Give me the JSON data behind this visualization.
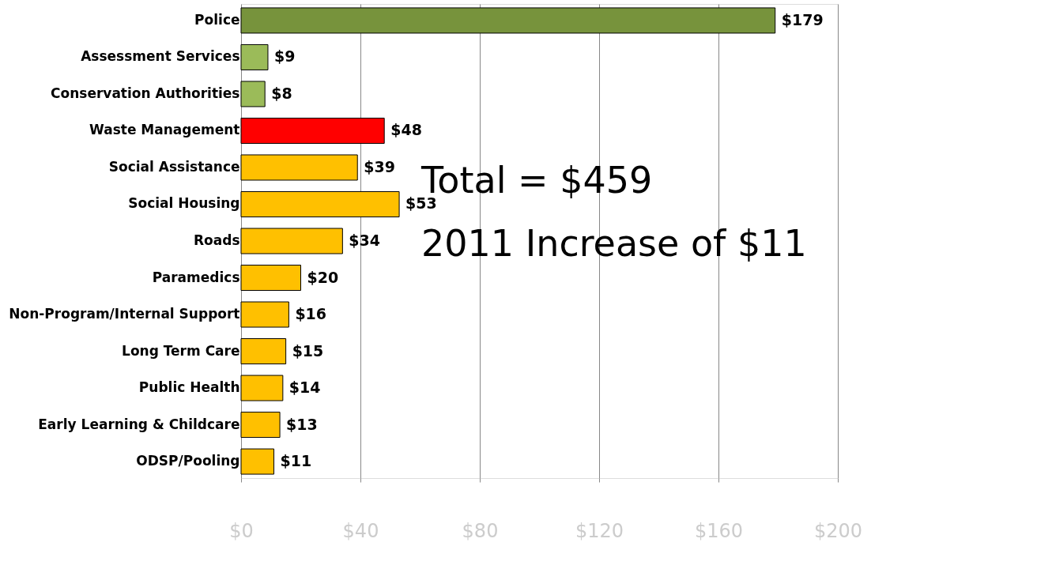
{
  "chart_data": {
    "type": "bar",
    "orientation": "horizontal",
    "categories": [
      "Police",
      "Assessment Services",
      "Conservation Authorities",
      "Waste Management",
      "Social Assistance",
      "Social Housing",
      "Roads",
      "Paramedics",
      "Non-Program/Internal Support",
      "Long Term Care",
      "Public Health",
      "Early Learning & Childcare",
      "ODSP/Pooling"
    ],
    "values": [
      179,
      9,
      8,
      48,
      39,
      53,
      34,
      20,
      16,
      15,
      14,
      13,
      11
    ],
    "colors": [
      "#77933c",
      "#9bbb59",
      "#9bbb59",
      "#ff0000",
      "#ffc000",
      "#ffc000",
      "#ffc000",
      "#ffc000",
      "#ffc000",
      "#ffc000",
      "#ffc000",
      "#ffc000",
      "#ffc000"
    ],
    "value_labels": [
      "$179",
      "$9",
      "$8",
      "$48",
      "$39",
      "$53",
      "$34",
      "$20",
      "$16",
      "$15",
      "$14",
      "$13",
      "$11"
    ],
    "xlim": [
      0,
      200
    ],
    "xticks": [
      {
        "value": 0,
        "label": "$0"
      },
      {
        "value": 40,
        "label": "$40"
      },
      {
        "value": 80,
        "label": "$80"
      },
      {
        "value": 120,
        "label": "$120"
      },
      {
        "value": 160,
        "label": "$160"
      },
      {
        "value": 200,
        "label": "$200"
      }
    ],
    "grid": "x",
    "annotations": [
      "Total = $459",
      "2011 Increase of $11"
    ]
  }
}
